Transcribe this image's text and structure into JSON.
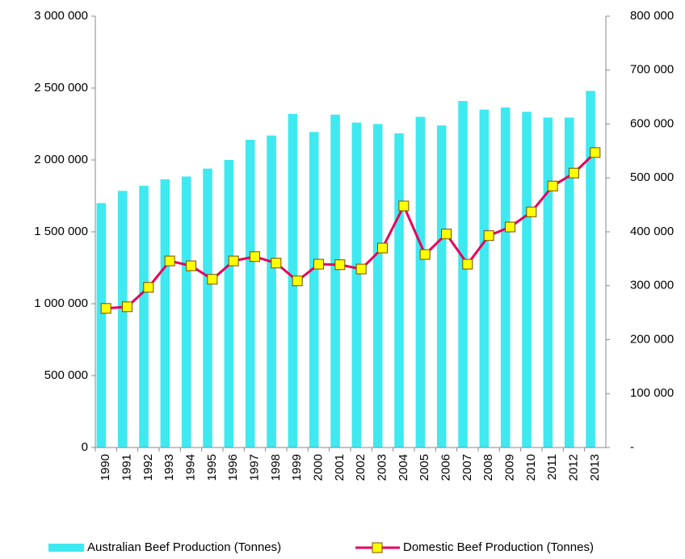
{
  "chart_data": {
    "type": "bar_line",
    "categories": [
      "1990",
      "1991",
      "1992",
      "1993",
      "1994",
      "1995",
      "1996",
      "1997",
      "1998",
      "1999",
      "2000",
      "2001",
      "2002",
      "2003",
      "2004",
      "2005",
      "2006",
      "2007",
      "2008",
      "2009",
      "2010",
      "2011",
      "2012",
      "2013"
    ],
    "series": [
      {
        "name": "Australian Beef Production (Tonnes)",
        "type": "bar",
        "color": "#3fe9f0",
        "values": [
          1700000,
          1785000,
          1820000,
          1865000,
          1885000,
          1940000,
          2000000,
          2140000,
          2170000,
          2320000,
          2195000,
          2315000,
          2260000,
          2250000,
          2185000,
          2300000,
          2240000,
          2410000,
          2350000,
          2365000,
          2335000,
          2295000,
          2295000,
          2480000
        ]
      },
      {
        "name": "Domestic Beef Production (Tonnes)",
        "type": "line",
        "axis": "y2",
        "color": "#e6005c",
        "marker_color": "#ffff00",
        "values": [
          258000,
          261000,
          297000,
          346000,
          337000,
          312000,
          346000,
          354000,
          342000,
          309000,
          340000,
          339000,
          331000,
          370000,
          448000,
          358000,
          396000,
          340000,
          393000,
          409000,
          437000,
          485000,
          509000,
          547000
        ]
      }
    ],
    "ylim": [
      0,
      3000000
    ],
    "yticks": [
      0,
      {
        "value": 500000,
        "label": "500 000"
      },
      {
        "value": 1000000,
        "label": "1 000 000"
      },
      {
        "value": 1500000,
        "label": "1 500 000"
      },
      {
        "value": 2000000,
        "label": "2 000 000"
      },
      {
        "value": 2500000,
        "label": "2 500 000"
      },
      {
        "value": 3000000,
        "label": "3 000 000"
      }
    ],
    "y2lim": [
      0,
      800000
    ],
    "y2ticks": [
      {
        "value": 0,
        "label": "-"
      },
      {
        "value": 100000,
        "label": "100 000"
      },
      {
        "value": 200000,
        "label": "200 000"
      },
      {
        "value": 300000,
        "label": "300 000"
      },
      {
        "value": 400000,
        "label": "400 000"
      },
      {
        "value": 500000,
        "label": "500 000"
      },
      {
        "value": 600000,
        "label": "600 000"
      },
      {
        "value": 700000,
        "label": "700 000"
      },
      {
        "value": 800000,
        "label": "800 000"
      }
    ],
    "legend": "bottom"
  }
}
